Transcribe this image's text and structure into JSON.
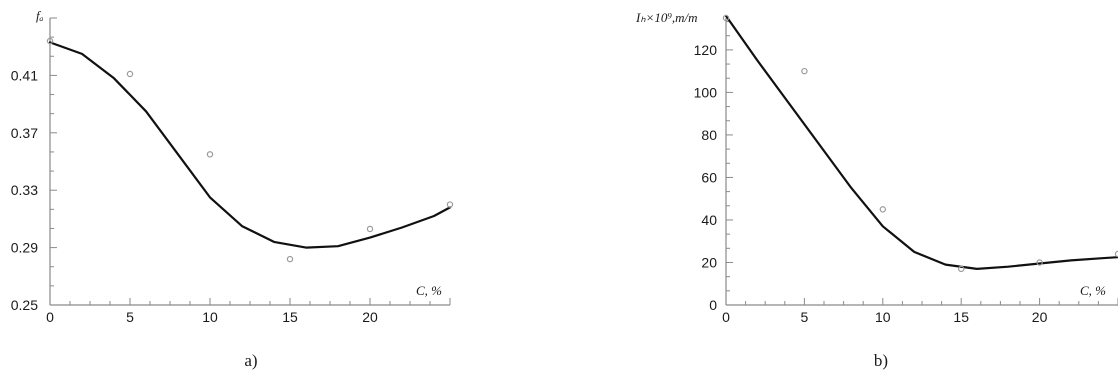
{
  "colors": {
    "axis": "#8a8a8a",
    "curve": "#111111",
    "point": "#9a9a9a",
    "text": "#1a1a1a"
  },
  "chart_data": [
    {
      "type": "line",
      "caption": "a)",
      "ylabel": "fₐ",
      "xlabel": "C, %",
      "xlim": [
        0,
        25
      ],
      "ylim": [
        0.25,
        0.45
      ],
      "x_ticks": [
        "0",
        "5",
        "10",
        "15",
        "20"
      ],
      "x_tick_values": [
        0,
        5,
        10,
        15,
        20
      ],
      "y_ticks": [
        "0.25",
        "0.29",
        "0.33",
        "0.37",
        "0.41"
      ],
      "y_tick_values": [
        0.25,
        0.29,
        0.33,
        0.37,
        0.41
      ],
      "grid": false,
      "points": [
        {
          "x": 0,
          "y": 0.434
        },
        {
          "x": 5,
          "y": 0.411
        },
        {
          "x": 10,
          "y": 0.355
        },
        {
          "x": 15,
          "y": 0.282
        },
        {
          "x": 20,
          "y": 0.303
        },
        {
          "x": 25,
          "y": 0.32
        }
      ],
      "curve": [
        {
          "x": 0,
          "y": 0.433
        },
        {
          "x": 2,
          "y": 0.425
        },
        {
          "x": 4,
          "y": 0.408
        },
        {
          "x": 6,
          "y": 0.385
        },
        {
          "x": 8,
          "y": 0.355
        },
        {
          "x": 10,
          "y": 0.325
        },
        {
          "x": 12,
          "y": 0.305
        },
        {
          "x": 14,
          "y": 0.294
        },
        {
          "x": 16,
          "y": 0.29
        },
        {
          "x": 18,
          "y": 0.291
        },
        {
          "x": 20,
          "y": 0.297
        },
        {
          "x": 22,
          "y": 0.304
        },
        {
          "x": 24,
          "y": 0.312
        },
        {
          "x": 25,
          "y": 0.318
        }
      ]
    },
    {
      "type": "line",
      "caption": "b)",
      "ylabel": "Iₕ×10⁹,m/m",
      "xlabel": "C, %",
      "xlim": [
        0,
        25
      ],
      "ylim": [
        0,
        135
      ],
      "x_ticks": [
        "0",
        "5",
        "10",
        "15",
        "20"
      ],
      "x_tick_values": [
        0,
        5,
        10,
        15,
        20
      ],
      "y_ticks": [
        "0",
        "20",
        "40",
        "60",
        "80",
        "100",
        "120"
      ],
      "y_tick_values": [
        0,
        20,
        40,
        60,
        80,
        100,
        120
      ],
      "grid": false,
      "points": [
        {
          "x": 0,
          "y": 135
        },
        {
          "x": 5,
          "y": 110
        },
        {
          "x": 10,
          "y": 45
        },
        {
          "x": 15,
          "y": 17
        },
        {
          "x": 20,
          "y": 20
        },
        {
          "x": 25,
          "y": 24
        }
      ],
      "curve": [
        {
          "x": 0,
          "y": 136
        },
        {
          "x": 2,
          "y": 115
        },
        {
          "x": 4,
          "y": 95
        },
        {
          "x": 6,
          "y": 75
        },
        {
          "x": 8,
          "y": 55
        },
        {
          "x": 10,
          "y": 37
        },
        {
          "x": 12,
          "y": 25
        },
        {
          "x": 14,
          "y": 19
        },
        {
          "x": 16,
          "y": 17
        },
        {
          "x": 18,
          "y": 18
        },
        {
          "x": 20,
          "y": 19.5
        },
        {
          "x": 22,
          "y": 21
        },
        {
          "x": 24,
          "y": 22
        },
        {
          "x": 25,
          "y": 22.5
        }
      ]
    }
  ]
}
